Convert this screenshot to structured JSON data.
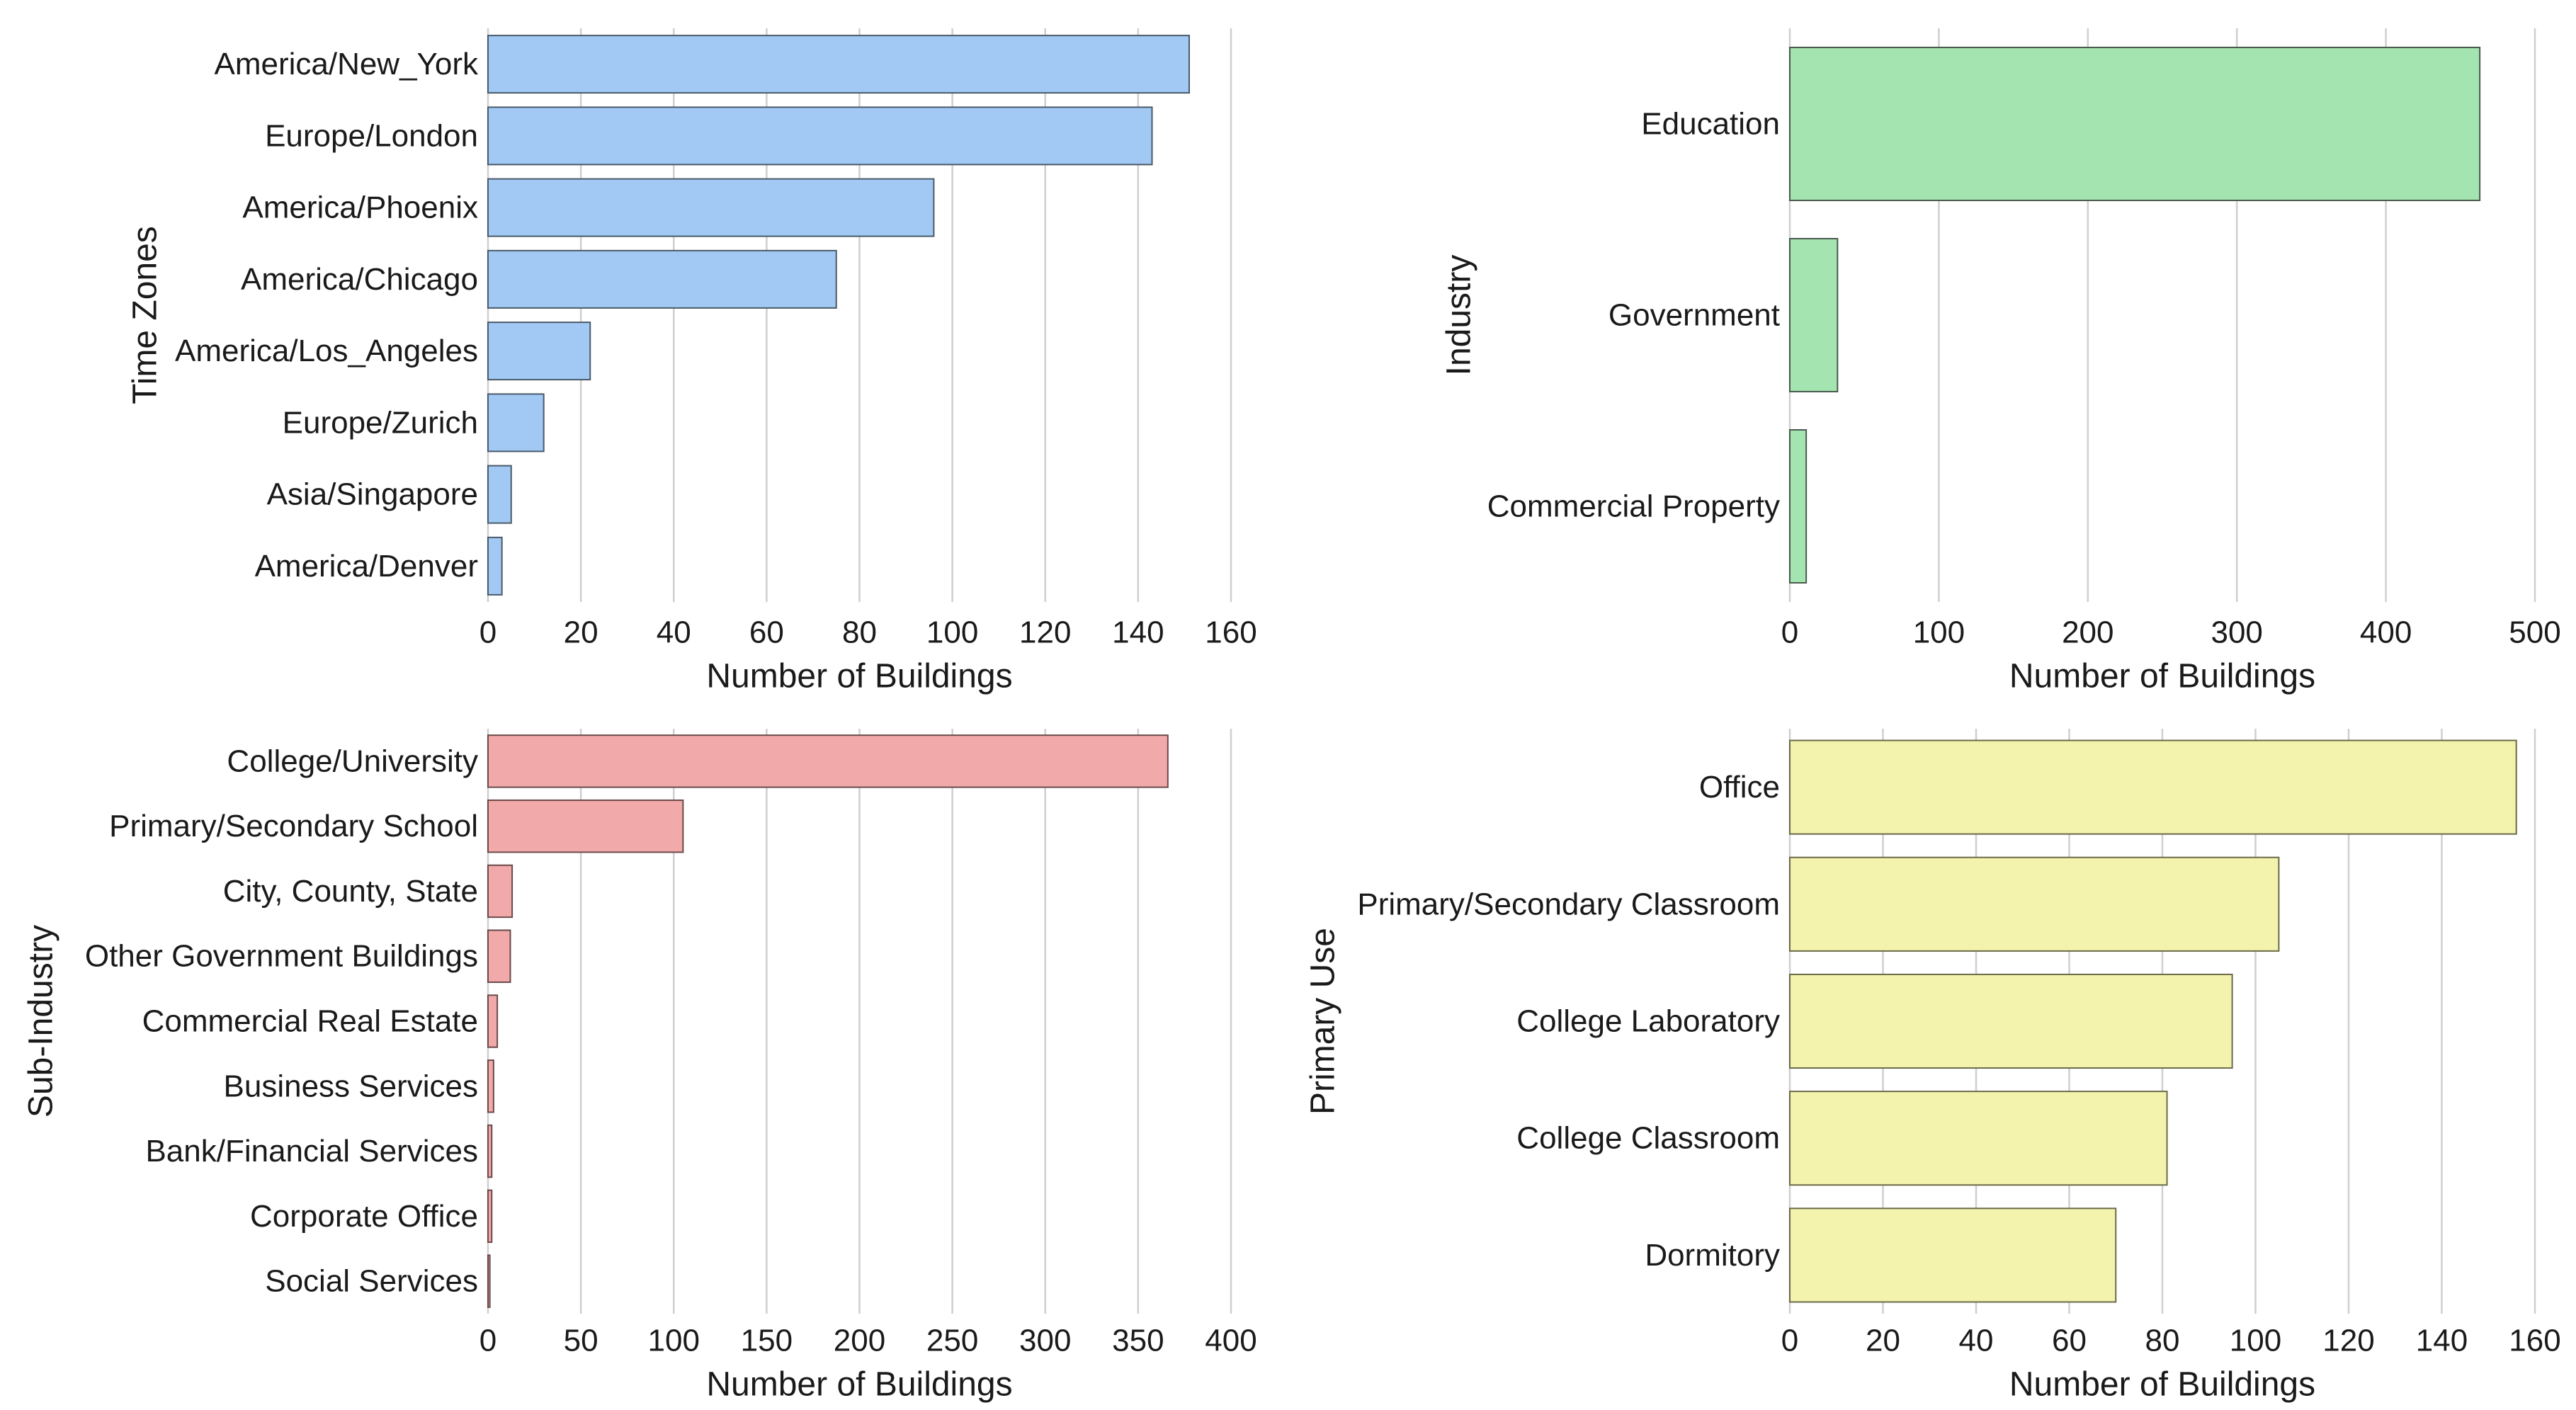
{
  "chart_data": [
    {
      "id": "timezones",
      "type": "bar",
      "orientation": "horizontal",
      "categories": [
        "America/New_York",
        "Europe/London",
        "America/Phoenix",
        "America/Chicago",
        "America/Los_Angeles",
        "Europe/Zurich",
        "Asia/Singapore",
        "America/Denver"
      ],
      "values": [
        151,
        143,
        96,
        75,
        22,
        12,
        5,
        3
      ],
      "xlabel": "Number of Buildings",
      "ylabel": "Time Zones",
      "xlim": [
        0,
        160
      ],
      "xticks": [
        0,
        20,
        40,
        60,
        80,
        100,
        120,
        140,
        160
      ],
      "grid": true,
      "color": "#a1c9f4",
      "edge_color": "#4a5a6a"
    },
    {
      "id": "industry",
      "type": "bar",
      "orientation": "horizontal",
      "categories": [
        "Education",
        "Government",
        "Commercial Property"
      ],
      "values": [
        463,
        32,
        11
      ],
      "xlabel": "Number of Buildings",
      "ylabel": "Industry",
      "xlim": [
        0,
        500
      ],
      "xticks": [
        0,
        100,
        200,
        300,
        400,
        500
      ],
      "grid": true,
      "color": "#a3e4b0",
      "edge_color": "#4a5a4e"
    },
    {
      "id": "subindustry",
      "type": "bar",
      "orientation": "horizontal",
      "categories": [
        "College/University",
        "Primary/Secondary School",
        "City, County, State",
        "Other Government Buildings",
        "Commercial Real Estate",
        "Business Services",
        "Bank/Financial Services",
        "Corporate Office",
        "Social Services"
      ],
      "values": [
        366,
        105,
        13,
        12,
        5,
        3,
        2,
        2,
        1
      ],
      "xlabel": "Number of Buildings",
      "ylabel": "Sub-Industry",
      "xlim": [
        0,
        400
      ],
      "xticks": [
        0,
        50,
        100,
        150,
        200,
        250,
        300,
        350,
        400
      ],
      "grid": true,
      "color": "#f2a9a9",
      "edge_color": "#6a4a4a"
    },
    {
      "id": "primaryuse",
      "type": "bar",
      "orientation": "horizontal",
      "categories": [
        "Office",
        "Primary/Secondary Classroom",
        "College Laboratory",
        "College Classroom",
        "Dormitory"
      ],
      "values": [
        156,
        105,
        95,
        81,
        70
      ],
      "xlabel": "Number of Buildings",
      "ylabel": "Primary Use",
      "xlim": [
        0,
        160
      ],
      "xticks": [
        0,
        20,
        40,
        60,
        80,
        100,
        120,
        140,
        160
      ],
      "grid": true,
      "color": "#f3f3ad",
      "edge_color": "#6a6a4a"
    }
  ]
}
